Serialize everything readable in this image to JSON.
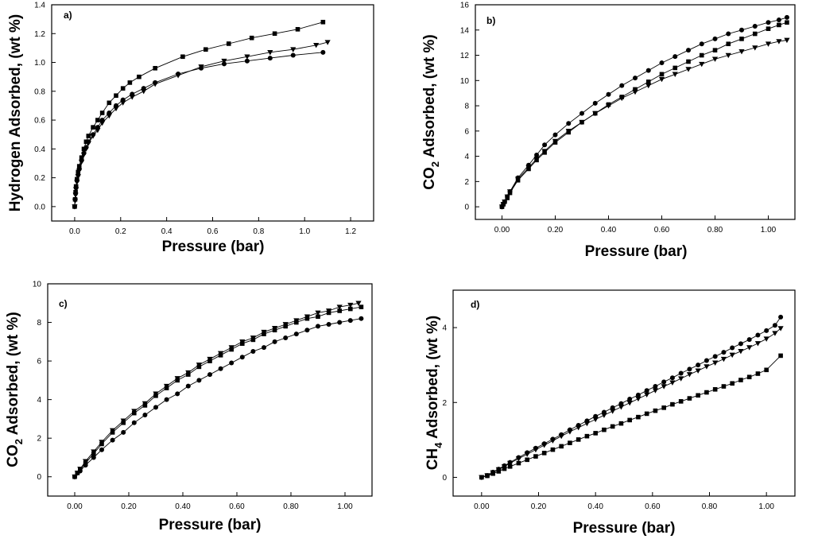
{
  "chart_data": [
    {
      "type": "scatter",
      "panel_label": "a)",
      "xlabel": "Pressure (bar)",
      "ylabel": "Hydrogen Adsorbed, (wt %)",
      "xlim": [
        -0.1,
        1.3
      ],
      "ylim": [
        -0.1,
        1.4
      ],
      "xticks": [
        0.0,
        0.2,
        0.4,
        0.6,
        0.8,
        1.0,
        1.2
      ],
      "xtick_labels": [
        "0.0",
        "0.2",
        "0.4",
        "0.6",
        "0.8",
        "1.0",
        "1.2"
      ],
      "yticks": [
        0.0,
        0.2,
        0.4,
        0.6,
        0.8,
        1.0,
        1.2,
        1.4
      ],
      "ytick_labels": [
        "0.0",
        "0.2",
        "0.4",
        "0.6",
        "0.8",
        "1.0",
        "1.2",
        "1.4"
      ],
      "grid": false,
      "series": [
        {
          "marker": "square",
          "x": [
            0.0,
            0.002,
            0.004,
            0.006,
            0.01,
            0.015,
            0.02,
            0.03,
            0.04,
            0.05,
            0.06,
            0.08,
            0.1,
            0.12,
            0.15,
            0.18,
            0.21,
            0.24,
            0.28,
            0.35,
            0.47,
            0.57,
            0.67,
            0.77,
            0.87,
            0.97,
            1.08
          ],
          "y": [
            0.0,
            0.05,
            0.1,
            0.14,
            0.19,
            0.24,
            0.28,
            0.34,
            0.4,
            0.45,
            0.49,
            0.55,
            0.6,
            0.65,
            0.72,
            0.77,
            0.82,
            0.86,
            0.9,
            0.96,
            1.04,
            1.09,
            1.13,
            1.17,
            1.2,
            1.23,
            1.28
          ]
        },
        {
          "marker": "triangle-down",
          "x": [
            0.0,
            0.002,
            0.004,
            0.006,
            0.01,
            0.015,
            0.02,
            0.03,
            0.04,
            0.05,
            0.06,
            0.08,
            0.1,
            0.12,
            0.15,
            0.18,
            0.21,
            0.25,
            0.3,
            0.35,
            0.45,
            0.55,
            0.65,
            0.75,
            0.85,
            0.95,
            1.05,
            1.1
          ],
          "y": [
            0.0,
            0.04,
            0.08,
            0.12,
            0.17,
            0.21,
            0.25,
            0.31,
            0.36,
            0.4,
            0.44,
            0.49,
            0.53,
            0.58,
            0.63,
            0.68,
            0.72,
            0.76,
            0.8,
            0.85,
            0.91,
            0.97,
            1.01,
            1.04,
            1.07,
            1.09,
            1.12,
            1.14
          ]
        },
        {
          "marker": "circle",
          "x": [
            0.0,
            0.002,
            0.004,
            0.006,
            0.01,
            0.015,
            0.02,
            0.03,
            0.04,
            0.05,
            0.06,
            0.08,
            0.1,
            0.12,
            0.15,
            0.18,
            0.21,
            0.25,
            0.3,
            0.35,
            0.45,
            0.55,
            0.65,
            0.75,
            0.85,
            0.95,
            1.08
          ],
          "y": [
            0.0,
            0.05,
            0.09,
            0.13,
            0.18,
            0.22,
            0.26,
            0.32,
            0.37,
            0.41,
            0.45,
            0.5,
            0.55,
            0.6,
            0.65,
            0.7,
            0.74,
            0.78,
            0.82,
            0.86,
            0.92,
            0.96,
            0.99,
            1.01,
            1.03,
            1.05,
            1.07
          ]
        }
      ]
    },
    {
      "type": "scatter",
      "panel_label": "b)",
      "xlabel": "Pressure (bar)",
      "ylabel_main": "CO",
      "ylabel_sub": "2",
      "ylabel_rest": " Adsorbed, (wt %)",
      "xlim": [
        -0.1,
        1.1
      ],
      "ylim": [
        -1,
        16
      ],
      "xticks": [
        0.0,
        0.2,
        0.4,
        0.6,
        0.8,
        1.0
      ],
      "xtick_labels": [
        "0.00",
        "0.20",
        "0.40",
        "0.60",
        "0.80",
        "1.00"
      ],
      "yticks": [
        0,
        2,
        4,
        6,
        8,
        10,
        12,
        14,
        16
      ],
      "ytick_labels": [
        "0",
        "2",
        "4",
        "6",
        "8",
        "10",
        "12",
        "14",
        "16"
      ],
      "grid": false,
      "series": [
        {
          "marker": "circle",
          "x": [
            0.0,
            0.005,
            0.01,
            0.02,
            0.03,
            0.06,
            0.1,
            0.13,
            0.16,
            0.2,
            0.25,
            0.3,
            0.35,
            0.4,
            0.45,
            0.5,
            0.55,
            0.6,
            0.65,
            0.7,
            0.75,
            0.8,
            0.85,
            0.9,
            0.95,
            1.0,
            1.04,
            1.07
          ],
          "y": [
            0.0,
            0.2,
            0.4,
            0.8,
            1.2,
            2.3,
            3.3,
            4.1,
            4.9,
            5.7,
            6.6,
            7.4,
            8.2,
            8.9,
            9.6,
            10.2,
            10.8,
            11.4,
            11.9,
            12.4,
            12.9,
            13.3,
            13.7,
            14.0,
            14.3,
            14.6,
            14.8,
            15.0
          ]
        },
        {
          "marker": "square",
          "x": [
            0.0,
            0.005,
            0.01,
            0.02,
            0.03,
            0.06,
            0.1,
            0.13,
            0.16,
            0.2,
            0.25,
            0.3,
            0.35,
            0.4,
            0.45,
            0.5,
            0.55,
            0.6,
            0.65,
            0.7,
            0.75,
            0.8,
            0.85,
            0.9,
            0.95,
            1.0,
            1.04,
            1.07
          ],
          "y": [
            0.0,
            0.2,
            0.4,
            0.7,
            1.1,
            2.1,
            3.0,
            3.7,
            4.3,
            5.1,
            5.9,
            6.7,
            7.4,
            8.1,
            8.7,
            9.3,
            9.9,
            10.5,
            11.0,
            11.5,
            12.0,
            12.4,
            12.9,
            13.3,
            13.7,
            14.1,
            14.4,
            14.6
          ]
        },
        {
          "marker": "triangle-down",
          "x": [
            0.0,
            0.005,
            0.01,
            0.02,
            0.03,
            0.06,
            0.1,
            0.13,
            0.16,
            0.2,
            0.25,
            0.3,
            0.35,
            0.4,
            0.45,
            0.5,
            0.55,
            0.6,
            0.65,
            0.7,
            0.75,
            0.8,
            0.85,
            0.9,
            0.95,
            1.0,
            1.04,
            1.07
          ],
          "y": [
            0.0,
            0.2,
            0.4,
            0.8,
            1.2,
            2.2,
            3.1,
            3.8,
            4.4,
            5.2,
            6.0,
            6.7,
            7.4,
            8.0,
            8.6,
            9.1,
            9.6,
            10.1,
            10.5,
            10.9,
            11.3,
            11.7,
            12.0,
            12.3,
            12.6,
            12.9,
            13.1,
            13.2
          ]
        }
      ]
    },
    {
      "type": "scatter",
      "panel_label": "c)",
      "xlabel": "Pressure (bar)",
      "ylabel_main": "CO",
      "ylabel_sub": "2",
      "ylabel_rest": " Adsorbed, (wt %)",
      "xlim": [
        -0.1,
        1.1
      ],
      "ylim": [
        -1,
        10
      ],
      "xticks": [
        0.0,
        0.2,
        0.4,
        0.6,
        0.8,
        1.0
      ],
      "xtick_labels": [
        "0.00",
        "0.20",
        "0.40",
        "0.60",
        "0.80",
        "1.00"
      ],
      "yticks": [
        0,
        2,
        4,
        6,
        8,
        10
      ],
      "ytick_labels": [
        "0",
        "2",
        "4",
        "6",
        "8",
        "10"
      ],
      "grid": false,
      "series": [
        {
          "marker": "triangle-down",
          "x": [
            0.0,
            0.01,
            0.02,
            0.04,
            0.07,
            0.1,
            0.14,
            0.18,
            0.22,
            0.26,
            0.3,
            0.34,
            0.38,
            0.42,
            0.46,
            0.5,
            0.54,
            0.58,
            0.62,
            0.66,
            0.7,
            0.74,
            0.78,
            0.82,
            0.86,
            0.9,
            0.94,
            0.98,
            1.02,
            1.05
          ],
          "y": [
            0.0,
            0.2,
            0.4,
            0.8,
            1.3,
            1.8,
            2.4,
            2.9,
            3.4,
            3.8,
            4.3,
            4.7,
            5.1,
            5.4,
            5.8,
            6.1,
            6.4,
            6.7,
            7.0,
            7.2,
            7.5,
            7.7,
            7.9,
            8.1,
            8.3,
            8.5,
            8.6,
            8.8,
            8.9,
            9.0
          ]
        },
        {
          "marker": "square",
          "x": [
            0.0,
            0.01,
            0.02,
            0.04,
            0.07,
            0.1,
            0.14,
            0.18,
            0.22,
            0.26,
            0.3,
            0.34,
            0.38,
            0.42,
            0.46,
            0.5,
            0.54,
            0.58,
            0.62,
            0.66,
            0.7,
            0.74,
            0.78,
            0.82,
            0.86,
            0.9,
            0.94,
            0.98,
            1.02,
            1.06
          ],
          "y": [
            0.0,
            0.2,
            0.4,
            0.7,
            1.2,
            1.7,
            2.3,
            2.8,
            3.3,
            3.7,
            4.2,
            4.6,
            5.0,
            5.3,
            5.7,
            6.0,
            6.3,
            6.6,
            6.9,
            7.1,
            7.4,
            7.6,
            7.8,
            8.0,
            8.2,
            8.3,
            8.5,
            8.6,
            8.7,
            8.8
          ]
        },
        {
          "marker": "circle",
          "x": [
            0.0,
            0.01,
            0.02,
            0.04,
            0.07,
            0.1,
            0.14,
            0.18,
            0.22,
            0.26,
            0.3,
            0.34,
            0.38,
            0.42,
            0.46,
            0.5,
            0.54,
            0.58,
            0.62,
            0.66,
            0.7,
            0.74,
            0.78,
            0.82,
            0.86,
            0.9,
            0.94,
            0.98,
            1.02,
            1.06
          ],
          "y": [
            0.0,
            0.2,
            0.3,
            0.6,
            1.0,
            1.4,
            1.9,
            2.3,
            2.8,
            3.2,
            3.6,
            4.0,
            4.3,
            4.7,
            5.0,
            5.3,
            5.6,
            5.9,
            6.2,
            6.5,
            6.7,
            7.0,
            7.2,
            7.4,
            7.6,
            7.8,
            7.9,
            8.0,
            8.1,
            8.2
          ]
        }
      ]
    },
    {
      "type": "scatter",
      "panel_label": "d)",
      "xlabel": "Pressure (bar)",
      "ylabel_main": "CH",
      "ylabel_sub": "4",
      "ylabel_rest": " Adsorbed, (wt %)",
      "xlim": [
        -0.1,
        1.1
      ],
      "ylim": [
        -0.5,
        5
      ],
      "xticks": [
        0.0,
        0.2,
        0.4,
        0.6,
        0.8,
        1.0
      ],
      "xtick_labels": [
        "0.00",
        "0.20",
        "0.40",
        "0.60",
        "0.80",
        "1.00"
      ],
      "yticks": [
        0,
        2,
        4
      ],
      "ytick_labels": [
        "0",
        "2",
        "4"
      ],
      "grid": false,
      "series": [
        {
          "marker": "circle",
          "x": [
            0.0,
            0.02,
            0.04,
            0.06,
            0.08,
            0.1,
            0.13,
            0.16,
            0.19,
            0.22,
            0.25,
            0.28,
            0.31,
            0.34,
            0.37,
            0.4,
            0.43,
            0.46,
            0.49,
            0.52,
            0.55,
            0.58,
            0.61,
            0.64,
            0.67,
            0.7,
            0.73,
            0.76,
            0.79,
            0.82,
            0.85,
            0.88,
            0.91,
            0.94,
            0.97,
            1.0,
            1.03,
            1.05
          ],
          "y": [
            0.0,
            0.05,
            0.14,
            0.22,
            0.31,
            0.4,
            0.53,
            0.66,
            0.78,
            0.9,
            1.02,
            1.14,
            1.27,
            1.39,
            1.51,
            1.63,
            1.74,
            1.86,
            1.97,
            2.09,
            2.2,
            2.32,
            2.43,
            2.55,
            2.66,
            2.78,
            2.89,
            3.0,
            3.12,
            3.23,
            3.34,
            3.46,
            3.57,
            3.68,
            3.8,
            3.92,
            4.06,
            4.28
          ]
        },
        {
          "marker": "triangle-down",
          "x": [
            0.0,
            0.02,
            0.04,
            0.06,
            0.08,
            0.1,
            0.13,
            0.16,
            0.19,
            0.22,
            0.25,
            0.28,
            0.31,
            0.34,
            0.37,
            0.4,
            0.43,
            0.46,
            0.49,
            0.52,
            0.55,
            0.58,
            0.61,
            0.64,
            0.67,
            0.7,
            0.73,
            0.76,
            0.79,
            0.82,
            0.85,
            0.88,
            0.91,
            0.94,
            0.97,
            1.0,
            1.03,
            1.05
          ],
          "y": [
            0.0,
            0.05,
            0.13,
            0.21,
            0.29,
            0.38,
            0.5,
            0.62,
            0.74,
            0.86,
            0.98,
            1.1,
            1.22,
            1.33,
            1.44,
            1.55,
            1.66,
            1.77,
            1.88,
            1.99,
            2.1,
            2.21,
            2.32,
            2.43,
            2.53,
            2.64,
            2.75,
            2.85,
            2.96,
            3.06,
            3.16,
            3.27,
            3.37,
            3.47,
            3.58,
            3.7,
            3.85,
            3.98
          ]
        },
        {
          "marker": "square",
          "x": [
            0.0,
            0.02,
            0.04,
            0.06,
            0.08,
            0.1,
            0.13,
            0.16,
            0.19,
            0.22,
            0.25,
            0.28,
            0.31,
            0.34,
            0.37,
            0.4,
            0.43,
            0.46,
            0.49,
            0.52,
            0.55,
            0.58,
            0.61,
            0.64,
            0.67,
            0.7,
            0.73,
            0.76,
            0.79,
            0.82,
            0.85,
            0.88,
            0.91,
            0.94,
            0.97,
            1.0,
            1.05
          ],
          "y": [
            0.0,
            0.04,
            0.1,
            0.16,
            0.23,
            0.29,
            0.38,
            0.47,
            0.56,
            0.65,
            0.74,
            0.83,
            0.92,
            1.01,
            1.1,
            1.18,
            1.27,
            1.36,
            1.44,
            1.53,
            1.61,
            1.7,
            1.78,
            1.86,
            1.95,
            2.03,
            2.11,
            2.19,
            2.27,
            2.35,
            2.43,
            2.51,
            2.6,
            2.68,
            2.77,
            2.87,
            3.25
          ]
        }
      ]
    }
  ]
}
